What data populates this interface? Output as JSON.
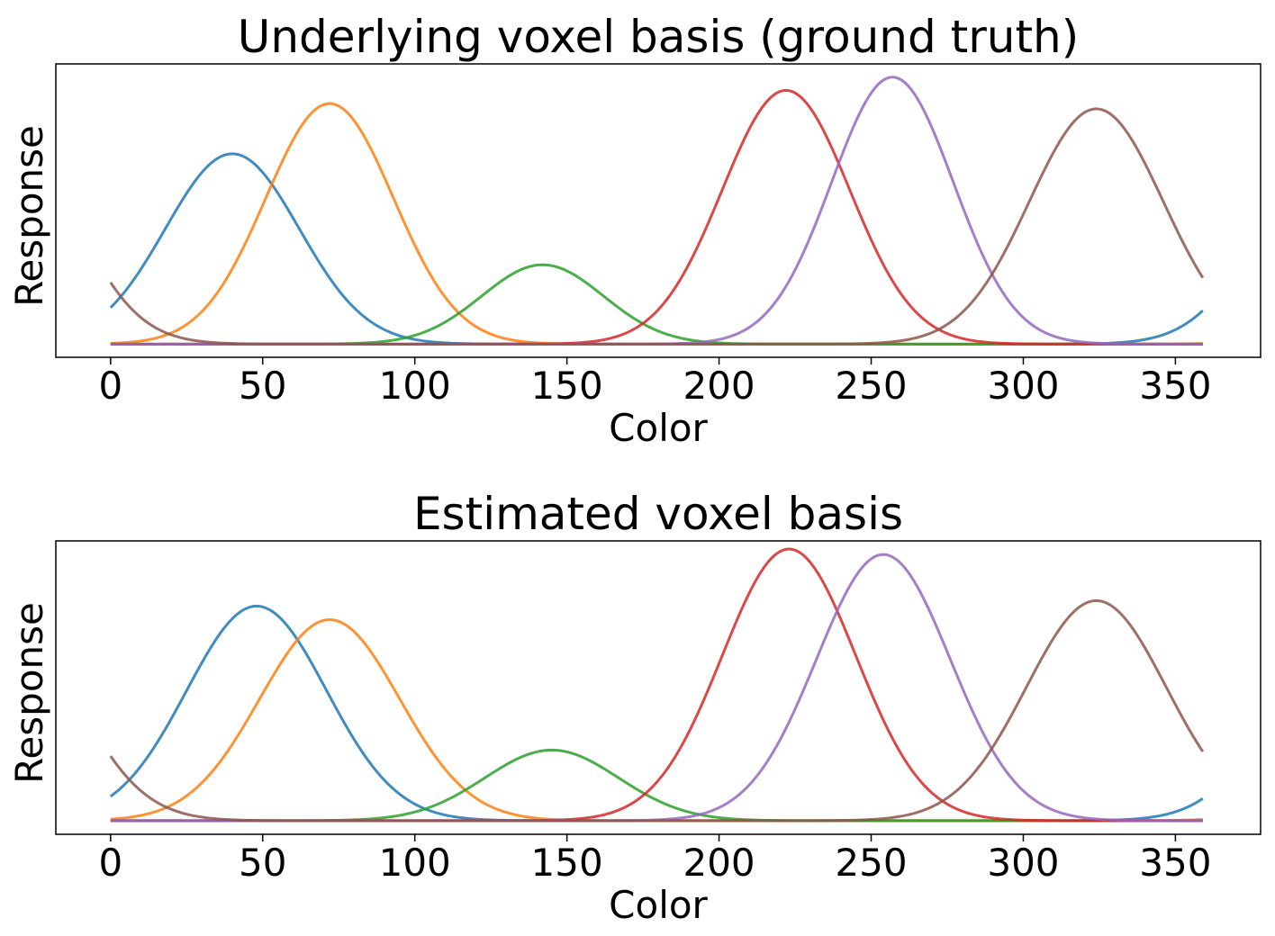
{
  "chart_data": [
    {
      "type": "line",
      "title": "Underlying voxel basis (ground truth)",
      "xlabel": "Color",
      "ylabel": "Response",
      "xlim": [
        -18,
        378
      ],
      "ylim": [
        -0.05,
        1.06
      ],
      "xticks": [
        0,
        50,
        100,
        150,
        200,
        250,
        300,
        350
      ],
      "xtick_labels": [
        "0",
        "50",
        "100",
        "150",
        "200",
        "250",
        "300",
        "350"
      ],
      "yticks_shown": false,
      "grid": false,
      "legend": "none",
      "x_range": [
        0,
        359
      ],
      "series": [
        {
          "center": 40,
          "amplitude": 0.72,
          "width": 22,
          "color": "#1f77b4"
        },
        {
          "center": 72,
          "amplitude": 0.91,
          "width": 21,
          "color": "#ff7f0e"
        },
        {
          "center": 142,
          "amplitude": 0.3,
          "width": 20,
          "color": "#2ca02c"
        },
        {
          "center": 222,
          "amplitude": 0.96,
          "width": 21,
          "color": "#d62728"
        },
        {
          "center": 257,
          "amplitude": 1.01,
          "width": 20,
          "color": "#9467bd"
        },
        {
          "center": 324,
          "amplitude": 0.89,
          "width": 22,
          "color": "#8c564b"
        }
      ]
    },
    {
      "type": "line",
      "title": "Estimated voxel basis",
      "xlabel": "Color",
      "ylabel": "Response",
      "xlim": [
        -18,
        378
      ],
      "ylim": [
        -0.05,
        1.03
      ],
      "xticks": [
        0,
        50,
        100,
        150,
        200,
        250,
        300,
        350
      ],
      "xtick_labels": [
        "0",
        "50",
        "100",
        "150",
        "200",
        "250",
        "300",
        "350"
      ],
      "yticks_shown": false,
      "grid": false,
      "legend": "none",
      "x_range": [
        0,
        359
      ],
      "series": [
        {
          "center": 48,
          "amplitude": 0.79,
          "width": 23,
          "color": "#1f77b4"
        },
        {
          "center": 72,
          "amplitude": 0.74,
          "width": 23,
          "color": "#ff7f0e"
        },
        {
          "center": 145,
          "amplitude": 0.26,
          "width": 22,
          "color": "#2ca02c"
        },
        {
          "center": 223,
          "amplitude": 1.0,
          "width": 22,
          "color": "#d62728"
        },
        {
          "center": 254,
          "amplitude": 0.98,
          "width": 22,
          "color": "#9467bd"
        },
        {
          "center": 324,
          "amplitude": 0.81,
          "width": 23,
          "color": "#8c564b"
        }
      ]
    }
  ]
}
